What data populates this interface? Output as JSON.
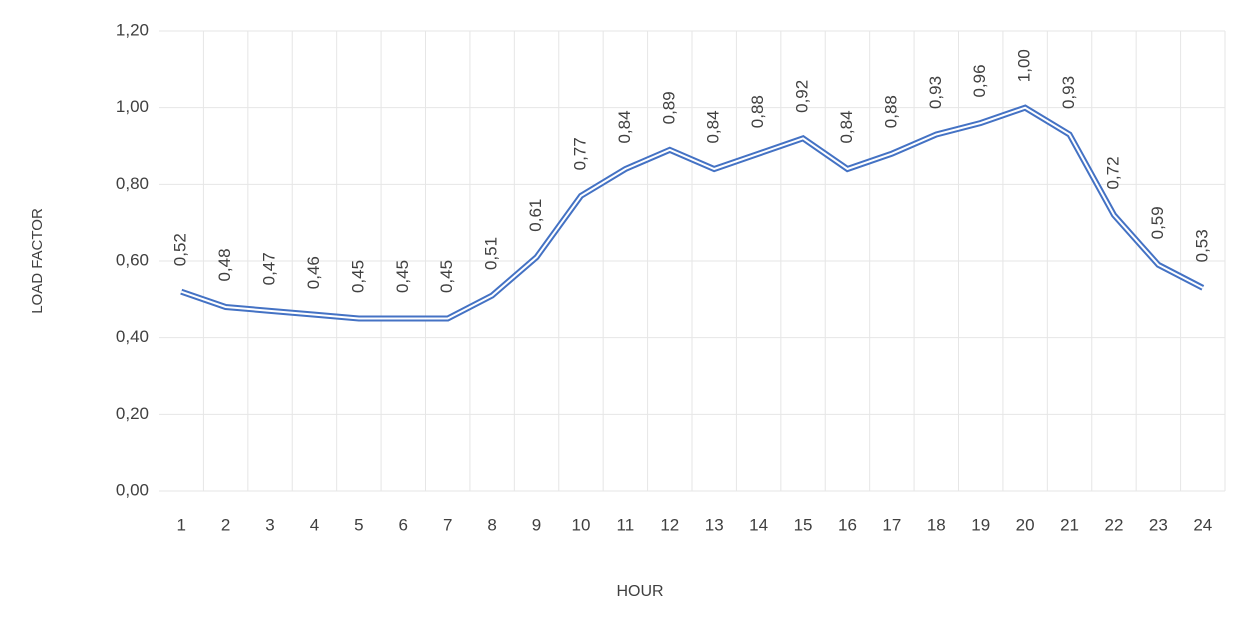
{
  "chart_data": {
    "type": "line",
    "x_label": "HOUR",
    "y_label": "LOAD FACTOR",
    "categories": [
      "1",
      "2",
      "3",
      "4",
      "5",
      "6",
      "7",
      "8",
      "9",
      "10",
      "11",
      "12",
      "13",
      "14",
      "15",
      "16",
      "17",
      "18",
      "19",
      "20",
      "21",
      "22",
      "23",
      "24"
    ],
    "series": [
      {
        "color": "#4472c4",
        "values": [
          0.52,
          0.48,
          0.47,
          0.46,
          0.45,
          0.45,
          0.45,
          0.51,
          0.61,
          0.77,
          0.84,
          0.89,
          0.84,
          0.88,
          0.92,
          0.84,
          0.88,
          0.93,
          0.96,
          1.0,
          0.93,
          0.72,
          0.59,
          0.53
        ],
        "value_labels": [
          "0,52",
          "0,48",
          "0,47",
          "0,46",
          "0,45",
          "0,45",
          "0,45",
          "0,51",
          "0,61",
          "0,77",
          "0,84",
          "0,89",
          "0,84",
          "0,88",
          "0,92",
          "0,84",
          "0,88",
          "0,93",
          "0,96",
          "1,00",
          "0,93",
          "0,72",
          "0,59",
          "0,53"
        ]
      }
    ],
    "ylim": [
      0,
      1.2
    ],
    "yticks": [
      {
        "value": 0,
        "label": "0,00"
      },
      {
        "value": 0.2,
        "label": "0,20"
      },
      {
        "value": 0.4,
        "label": "0,40"
      },
      {
        "value": 0.6,
        "label": "0,60"
      },
      {
        "value": 0.8,
        "label": "0,80"
      },
      {
        "value": 1.0,
        "label": "1,00"
      },
      {
        "value": 1.2,
        "label": "1,20"
      }
    ],
    "grid": true
  }
}
